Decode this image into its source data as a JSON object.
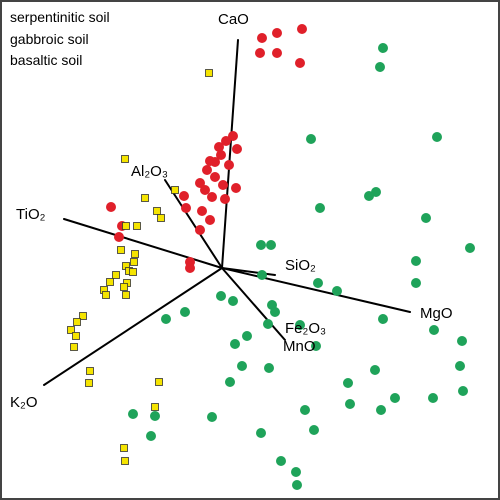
{
  "chart_data": {
    "type": "scatter",
    "title": "",
    "legend": {
      "placement": "top-left",
      "entries": [
        "serpentinitic soil",
        "gabbroic soil",
        "basaltic soil"
      ]
    },
    "vectors": [
      "CaO",
      "Al₂O₃",
      "TiO₂",
      "SiO₂",
      "MgO",
      "Fe₂O₃",
      "MnO",
      "K₂O"
    ],
    "series": [
      {
        "marker": "circle",
        "color": "#e0202a",
        "points": [
          [
            262,
            38
          ],
          [
            277,
            33
          ],
          [
            302,
            29
          ],
          [
            260,
            53
          ],
          [
            277,
            53
          ],
          [
            300,
            63
          ],
          [
            233,
            136
          ],
          [
            226,
            141
          ],
          [
            219,
            147
          ],
          [
            237,
            149
          ],
          [
            221,
            155
          ],
          [
            210,
            161
          ],
          [
            215,
            162
          ],
          [
            229,
            165
          ],
          [
            207,
            170
          ],
          [
            215,
            177
          ],
          [
            200,
            183
          ],
          [
            223,
            185
          ],
          [
            236,
            188
          ],
          [
            205,
            190
          ],
          [
            184,
            196
          ],
          [
            212,
            197
          ],
          [
            225,
            199
          ],
          [
            186,
            208
          ],
          [
            202,
            211
          ],
          [
            111,
            207
          ],
          [
            122,
            226
          ],
          [
            119,
            237
          ],
          [
            210,
            220
          ],
          [
            200,
            230
          ],
          [
            190,
            262
          ],
          [
            190,
            268
          ]
        ]
      },
      {
        "marker": "circle",
        "color": "#1fa35a",
        "points": [
          [
            383,
            48
          ],
          [
            380,
            67
          ],
          [
            437,
            137
          ],
          [
            311,
            139
          ],
          [
            376,
            192
          ],
          [
            369,
            196
          ],
          [
            320,
            208
          ],
          [
            426,
            218
          ],
          [
            271,
            245
          ],
          [
            261,
            245
          ],
          [
            470,
            248
          ],
          [
            416,
            261
          ],
          [
            262,
            275
          ],
          [
            318,
            283
          ],
          [
            416,
            283
          ],
          [
            337,
            291
          ],
          [
            221,
            296
          ],
          [
            233,
            301
          ],
          [
            272,
            305
          ],
          [
            185,
            312
          ],
          [
            275,
            312
          ],
          [
            166,
            319
          ],
          [
            383,
            319
          ],
          [
            268,
            324
          ],
          [
            300,
            325
          ],
          [
            434,
            330
          ],
          [
            247,
            336
          ],
          [
            462,
            341
          ],
          [
            235,
            344
          ],
          [
            316,
            346
          ],
          [
            242,
            366
          ],
          [
            460,
            366
          ],
          [
            269,
            368
          ],
          [
            375,
            370
          ],
          [
            230,
            382
          ],
          [
            348,
            383
          ],
          [
            463,
            391
          ],
          [
            395,
            398
          ],
          [
            433,
            398
          ],
          [
            350,
            404
          ],
          [
            305,
            410
          ],
          [
            381,
            410
          ],
          [
            212,
            417
          ],
          [
            133,
            414
          ],
          [
            155,
            416
          ],
          [
            314,
            430
          ],
          [
            261,
            433
          ],
          [
            151,
            436
          ],
          [
            281,
            461
          ],
          [
            296,
            472
          ],
          [
            297,
            485
          ]
        ]
      },
      {
        "marker": "square",
        "color": "#f5e400",
        "points": [
          [
            209,
            73
          ],
          [
            125,
            159
          ],
          [
            175,
            190
          ],
          [
            145,
            198
          ],
          [
            157,
            211
          ],
          [
            161,
            218
          ],
          [
            137,
            226
          ],
          [
            126,
            226
          ],
          [
            121,
            250
          ],
          [
            135,
            254
          ],
          [
            134,
            262
          ],
          [
            126,
            266
          ],
          [
            129,
            271
          ],
          [
            133,
            272
          ],
          [
            116,
            275
          ],
          [
            110,
            282
          ],
          [
            127,
            283
          ],
          [
            104,
            290
          ],
          [
            124,
            287
          ],
          [
            106,
            295
          ],
          [
            126,
            295
          ],
          [
            83,
            316
          ],
          [
            77,
            322
          ],
          [
            71,
            330
          ],
          [
            76,
            336
          ],
          [
            74,
            347
          ],
          [
            90,
            371
          ],
          [
            89,
            383
          ],
          [
            159,
            382
          ],
          [
            155,
            407
          ],
          [
            124,
            448
          ],
          [
            125,
            461
          ]
        ]
      }
    ]
  },
  "axes_style": {
    "line_color": "#000000"
  }
}
